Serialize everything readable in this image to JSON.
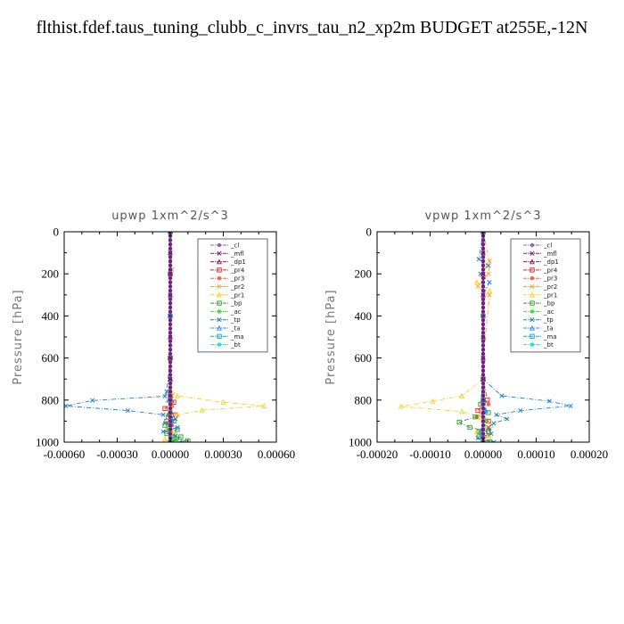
{
  "main_title": "flthist.fdef.taus_tuning_clubb_c_invrs_tau_n2_xp2m  BUDGET at255E,-12N",
  "chart_data": [
    {
      "type": "line",
      "title": "upwp   1xm^2/s^3",
      "ylabel": "Pressure [hPa]",
      "xlim": [
        -0.0006,
        0.0006
      ],
      "ylim": [
        1000,
        0
      ],
      "xticks": [
        "-0.00060",
        "-0.00030",
        "0.00000",
        "0.00030",
        "0.00060"
      ],
      "xtick_values": [
        -0.0006,
        -0.0003,
        0,
        0.0003,
        0.0006
      ],
      "yticks": [
        "0",
        "200",
        "400",
        "600",
        "800",
        "1000"
      ],
      "ytick_values": [
        0,
        200,
        400,
        600,
        800,
        1000
      ],
      "legend_position": "top-right",
      "series": [
        {
          "name": "_cl",
          "color": "#8a63c6",
          "x": [
            0,
            0,
            0,
            0,
            0,
            0,
            0,
            0,
            0,
            0
          ],
          "y": [
            0,
            100,
            200,
            300,
            400,
            500,
            600,
            700,
            800,
            1000
          ]
        },
        {
          "name": "_mfl",
          "color": "#7b1a7b",
          "x": [
            0,
            0,
            0,
            0,
            0,
            0,
            0,
            0,
            0,
            0
          ],
          "y": [
            0,
            100,
            200,
            300,
            400,
            500,
            600,
            700,
            800,
            1000
          ]
        },
        {
          "name": "_dp1",
          "color": "#a0104c",
          "x": [
            0,
            0,
            0,
            0,
            0,
            0,
            0,
            0,
            0,
            0
          ],
          "y": [
            0,
            100,
            200,
            300,
            400,
            500,
            600,
            700,
            800,
            1000
          ]
        },
        {
          "name": "_pr4",
          "color": "#e02020",
          "x": [
            0,
            0,
            0,
            0,
            2e-05,
            -3e-05,
            3e-05,
            -2e-05,
            0
          ],
          "y": [
            0,
            200,
            600,
            780,
            810,
            840,
            870,
            900,
            1000
          ]
        },
        {
          "name": "_pr3",
          "color": "#ff6040",
          "x": [
            0,
            0,
            0,
            0,
            1e-05,
            -1e-05,
            1e-05,
            0
          ],
          "y": [
            0,
            200,
            600,
            780,
            830,
            870,
            920,
            1000
          ]
        },
        {
          "name": "_pr2",
          "color": "#ffa030",
          "x": [
            0,
            1e-05,
            0,
            0,
            1e-05,
            1e-05,
            0,
            2e-05,
            1e-05
          ],
          "y": [
            0,
            180,
            230,
            600,
            780,
            830,
            900,
            960,
            1000
          ]
        },
        {
          "name": "_pr1",
          "color": "#f4d020",
          "x": [
            0,
            0,
            0,
            4e-05,
            0.0003,
            0.00053,
            0.00018,
            4e-05,
            0,
            -2e-05,
            3e-05,
            -3e-05,
            2e-05
          ],
          "y": [
            0,
            600,
            750,
            780,
            810,
            828,
            848,
            870,
            900,
            940,
            965,
            985,
            1000
          ]
        },
        {
          "name": "_bp",
          "color": "#20a020",
          "x": [
            0,
            0,
            0,
            -1e-05,
            2e-05,
            -3e-05,
            4e-05,
            -2e-05,
            6e-05,
            2e-05,
            0.0001,
            3e-05
          ],
          "y": [
            0,
            600,
            860,
            880,
            900,
            920,
            940,
            960,
            975,
            985,
            993,
            1000
          ]
        },
        {
          "name": "_ac",
          "color": "#40e040",
          "x": [
            0,
            0,
            1e-05,
            -1e-05,
            2e-05,
            0
          ],
          "y": [
            0,
            700,
            900,
            940,
            980,
            1000
          ]
        },
        {
          "name": "_tp",
          "color": "#2080d0",
          "x": [
            0,
            0,
            0,
            -2e-05,
            -3e-05,
            -0.00044,
            -0.00059,
            -0.00024,
            -4e-05,
            3e-05,
            -3e-05,
            4e-05,
            -4e-05,
            3e-05,
            7e-05
          ],
          "y": [
            0,
            190,
            600,
            760,
            782,
            802,
            828,
            850,
            870,
            890,
            910,
            930,
            950,
            970,
            1000
          ]
        },
        {
          "name": "_ta",
          "color": "#1e90ff",
          "x": [
            0,
            0,
            -1e-05,
            1e-05,
            0
          ],
          "y": [
            0,
            700,
            800,
            900,
            1000
          ]
        },
        {
          "name": "_ma",
          "color": "#00b0b0",
          "x": [
            0,
            0,
            0,
            0
          ],
          "y": [
            0,
            400,
            800,
            1000
          ]
        },
        {
          "name": "_bt",
          "color": "#20e0e0",
          "x": [
            0,
            0,
            0,
            0
          ],
          "y": [
            0,
            400,
            800,
            1000
          ]
        }
      ]
    },
    {
      "type": "line",
      "title": "vpwp   1xm^2/s^3",
      "ylabel": "Pressure [hPa]",
      "xlim": [
        -0.0002,
        0.0002
      ],
      "ylim": [
        1000,
        0
      ],
      "xticks": [
        "-0.00020",
        "-0.00010",
        "0.00000",
        "0.00010",
        "0.00020"
      ],
      "xtick_values": [
        -0.0002,
        -0.0001,
        0,
        0.0001,
        0.0002
      ],
      "yticks": [
        "0",
        "200",
        "400",
        "600",
        "800",
        "1000"
      ],
      "ytick_values": [
        0,
        200,
        400,
        600,
        800,
        1000
      ],
      "legend_position": "top-right",
      "series": [
        {
          "name": "_cl",
          "color": "#8a63c6",
          "x": [
            0,
            0,
            0,
            0,
            0,
            0,
            0,
            0,
            0,
            0
          ],
          "y": [
            0,
            100,
            200,
            300,
            400,
            500,
            600,
            700,
            800,
            1000
          ]
        },
        {
          "name": "_mfl",
          "color": "#7b1a7b",
          "x": [
            0,
            0,
            0,
            0,
            0,
            0,
            0,
            0,
            0,
            0
          ],
          "y": [
            0,
            100,
            200,
            300,
            400,
            500,
            600,
            700,
            800,
            1000
          ]
        },
        {
          "name": "_dp1",
          "color": "#a0104c",
          "x": [
            0,
            0,
            0,
            0,
            0,
            0,
            0,
            0,
            0,
            0
          ],
          "y": [
            0,
            100,
            200,
            300,
            400,
            500,
            600,
            700,
            800,
            1000
          ]
        },
        {
          "name": "_pr4",
          "color": "#e02020",
          "x": [
            0,
            0,
            8e-06,
            -1e-05,
            1e-05,
            -8e-06,
            0
          ],
          "y": [
            0,
            700,
            800,
            850,
            900,
            950,
            1000
          ]
        },
        {
          "name": "_pr3",
          "color": "#ff6040",
          "x": [
            0,
            0,
            1e-05,
            -1.2e-05,
            1.2e-05,
            0
          ],
          "y": [
            0,
            700,
            820,
            880,
            940,
            1000
          ]
        },
        {
          "name": "_pr2",
          "color": "#ffa030",
          "x": [
            0,
            1.2e-05,
            1e-05,
            -1e-05,
            1.2e-05,
            0,
            0,
            1e-05,
            2e-05
          ],
          "y": [
            0,
            140,
            200,
            260,
            300,
            600,
            900,
            970,
            1000
          ]
        },
        {
          "name": "_pr1",
          "color": "#f4d020",
          "x": [
            0,
            0,
            8e-06,
            -1.2e-05,
            1.2e-05,
            0,
            0,
            -4e-05,
            -9.5e-05,
            -0.000155,
            -4e-05,
            -5e-06,
            1.5e-05,
            -1.2e-05,
            1.2e-05,
            2e-06
          ],
          "y": [
            0,
            130,
            160,
            240,
            280,
            320,
            700,
            780,
            805,
            830,
            855,
            880,
            920,
            950,
            980,
            1000
          ]
        },
        {
          "name": "_bp",
          "color": "#20a020",
          "x": [
            0,
            0,
            -5e-06,
            1e-05,
            -1.5e-05,
            -4.5e-05,
            -2.5e-05,
            1e-05,
            -8e-06,
            1.2e-05
          ],
          "y": [
            0,
            700,
            820,
            860,
            880,
            905,
            930,
            950,
            975,
            1000
          ]
        },
        {
          "name": "_ac",
          "color": "#40e040",
          "x": [
            0,
            0,
            5e-06,
            -5e-06,
            0
          ],
          "y": [
            0,
            700,
            900,
            950,
            1000
          ]
        },
        {
          "name": "_tp",
          "color": "#2080d0",
          "x": [
            0,
            -8e-06,
            1e-05,
            -5e-06,
            1.2e-05,
            0,
            0,
            3.5e-05,
            0.000125,
            0.000165,
            7e-05,
            2.5e-05,
            4.5e-05,
            2e-05,
            1e-05,
            1.5e-05,
            -1e-05,
            2e-05
          ],
          "y": [
            0,
            130,
            160,
            200,
            240,
            300,
            700,
            780,
            805,
            828,
            850,
            870,
            890,
            910,
            930,
            960,
            980,
            1000
          ]
        },
        {
          "name": "_ta",
          "color": "#1e90ff",
          "x": [
            0,
            0,
            5e-06,
            -5e-06,
            0
          ],
          "y": [
            0,
            700,
            850,
            950,
            1000
          ]
        },
        {
          "name": "_ma",
          "color": "#00b0b0",
          "x": [
            0,
            0,
            0,
            0
          ],
          "y": [
            0,
            400,
            800,
            1000
          ]
        },
        {
          "name": "_bt",
          "color": "#20e0e0",
          "x": [
            0,
            0,
            0,
            0
          ],
          "y": [
            0,
            400,
            800,
            1000
          ]
        }
      ]
    }
  ]
}
